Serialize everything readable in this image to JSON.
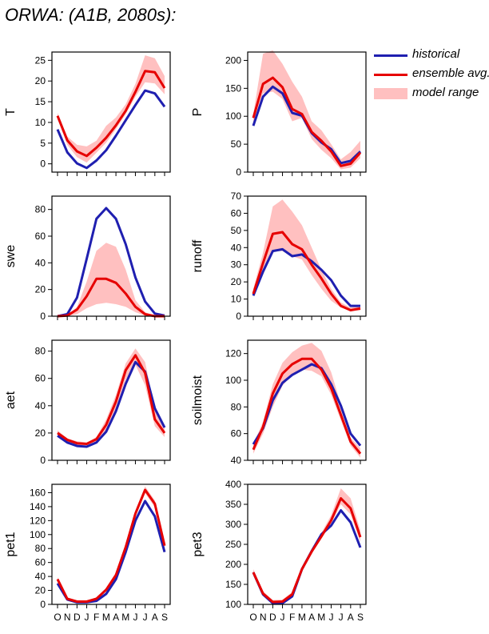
{
  "title": "ORWA:  (A1B, 2080s):",
  "colors": {
    "historical": "#1f1fb0",
    "ensemble": "#e60000",
    "range": "#ffc0c0"
  },
  "legend": {
    "historical": "historical",
    "ensemble": "ensemble avg.",
    "range": "model range"
  },
  "chart_data": [
    {
      "type": "line",
      "ylabel": "T",
      "categories": [
        "O",
        "N",
        "D",
        "J",
        "F",
        "M",
        "A",
        "M",
        "J",
        "J",
        "A",
        "S"
      ],
      "ylim": [
        -2,
        27
      ],
      "yticks": [
        0,
        5,
        10,
        15,
        20,
        25
      ],
      "series": [
        {
          "name": "historical",
          "values": [
            8.3,
            2.8,
            0.1,
            -1.0,
            0.8,
            3.3,
            6.8,
            10.5,
            14.2,
            17.7,
            17.0,
            13.8
          ]
        },
        {
          "name": "ensemble avg.",
          "values": [
            11.6,
            5.7,
            3.0,
            1.9,
            3.9,
            6.3,
            9.3,
            12.8,
            17.4,
            22.4,
            22.1,
            18.3
          ]
        }
      ],
      "range": {
        "low": [
          10.8,
          4.6,
          1.6,
          0.3,
          2.7,
          5.1,
          8.4,
          12.0,
          16.2,
          19.7,
          19.4,
          16.8
        ],
        "high": [
          12.3,
          6.6,
          4.6,
          4.2,
          5.6,
          9.2,
          11.2,
          14.4,
          19.3,
          26.2,
          25.5,
          21.2
        ]
      }
    },
    {
      "type": "line",
      "ylabel": "P",
      "categories": [
        "O",
        "N",
        "D",
        "J",
        "F",
        "M",
        "A",
        "M",
        "J",
        "J",
        "A",
        "S"
      ],
      "ylim": [
        0,
        215
      ],
      "yticks": [
        0,
        50,
        100,
        150,
        200
      ],
      "series": [
        {
          "name": "historical",
          "values": [
            83,
            135,
            153,
            141,
            106,
            101,
            70,
            53,
            41,
            16,
            20,
            37
          ]
        },
        {
          "name": "ensemble avg.",
          "values": [
            97,
            158,
            169,
            152,
            113,
            104,
            72,
            56,
            37,
            11,
            15,
            35
          ]
        }
      ],
      "range": {
        "low": [
          89,
          141,
          144,
          131,
          91,
          97,
          59,
          40,
          25,
          5,
          8,
          25
        ],
        "high": [
          104,
          212,
          218,
          194,
          162,
          135,
          91,
          75,
          50,
          23,
          36,
          56
        ]
      }
    },
    {
      "type": "line",
      "ylabel": "swe",
      "categories": [
        "O",
        "N",
        "D",
        "J",
        "F",
        "M",
        "A",
        "M",
        "J",
        "J",
        "A",
        "S"
      ],
      "ylim": [
        0,
        90
      ],
      "yticks": [
        0,
        20,
        40,
        60,
        80
      ],
      "series": [
        {
          "name": "historical",
          "values": [
            0,
            1.5,
            14,
            43,
            73,
            81,
            73,
            54,
            29,
            11,
            2,
            0.5
          ]
        },
        {
          "name": "ensemble avg.",
          "values": [
            0,
            0.5,
            5,
            15,
            28,
            28,
            25,
            17,
            7,
            1.5,
            0,
            0
          ]
        }
      ],
      "range": {
        "low": [
          0,
          0,
          1.5,
          6,
          9,
          10,
          9,
          7,
          3,
          0.5,
          0,
          0
        ],
        "high": [
          0,
          0.5,
          7,
          26,
          49,
          55,
          52,
          35,
          12,
          3,
          0.5,
          0
        ]
      }
    },
    {
      "type": "line",
      "ylabel": "runoff",
      "categories": [
        "O",
        "N",
        "D",
        "J",
        "F",
        "M",
        "A",
        "M",
        "J",
        "J",
        "A",
        "S"
      ],
      "ylim": [
        0,
        70
      ],
      "yticks": [
        0,
        10,
        20,
        30,
        40,
        50,
        60,
        70
      ],
      "series": [
        {
          "name": "historical",
          "values": [
            12,
            26,
            38,
            39,
            35,
            36,
            32,
            27,
            21,
            12,
            6,
            6
          ]
        },
        {
          "name": "ensemble avg.",
          "values": [
            13,
            31,
            48,
            49,
            42,
            39,
            30,
            22,
            13,
            6,
            3.5,
            4.5
          ]
        }
      ],
      "range": {
        "low": [
          12,
          27,
          38,
          38,
          35,
          33,
          24,
          16,
          9,
          5,
          3,
          3.5
        ],
        "high": [
          16,
          37,
          64,
          68,
          61,
          53,
          40,
          27,
          16,
          8,
          5,
          6
        ]
      }
    },
    {
      "type": "line",
      "ylabel": "aet",
      "categories": [
        "O",
        "N",
        "D",
        "J",
        "F",
        "M",
        "A",
        "M",
        "J",
        "J",
        "A",
        "S"
      ],
      "ylim": [
        0,
        88
      ],
      "yticks": [
        0,
        20,
        40,
        60,
        80
      ],
      "series": [
        {
          "name": "historical",
          "values": [
            18,
            13,
            10.5,
            10,
            13,
            21,
            36,
            56,
            72,
            65,
            38,
            24
          ]
        },
        {
          "name": "ensemble avg.",
          "values": [
            20,
            15,
            12.5,
            12,
            15.5,
            26,
            43,
            66,
            77,
            64,
            30,
            20
          ]
        }
      ],
      "range": {
        "low": [
          18,
          13,
          11,
          11,
          13,
          22,
          37,
          59,
          70,
          55,
          25,
          17
        ],
        "high": [
          22,
          16,
          14,
          13,
          17,
          30,
          48,
          71,
          82,
          72,
          38,
          25
        ]
      }
    },
    {
      "type": "line",
      "ylabel": "soilmoist",
      "categories": [
        "O",
        "N",
        "D",
        "J",
        "F",
        "M",
        "A",
        "M",
        "J",
        "J",
        "A",
        "S"
      ],
      "ylim": [
        40,
        130
      ],
      "yticks": [
        40,
        60,
        80,
        100,
        120
      ],
      "series": [
        {
          "name": "historical",
          "values": [
            52,
            64,
            85,
            98,
            104,
            108,
            112,
            109,
            97,
            81,
            60,
            51
          ]
        },
        {
          "name": "ensemble avg.",
          "values": [
            48,
            65,
            90,
            105,
            112,
            116,
            116,
            108,
            94,
            74,
            54,
            45
          ]
        }
      ],
      "range": {
        "low": [
          45,
          60,
          80,
          96,
          104,
          108,
          107,
          103,
          89,
          70,
          51,
          42
        ],
        "high": [
          52,
          69,
          97,
          113,
          121,
          126,
          128,
          122,
          106,
          82,
          57,
          49
        ]
      }
    },
    {
      "type": "line",
      "ylabel": "pet1",
      "categories": [
        "O",
        "N",
        "D",
        "J",
        "F",
        "M",
        "A",
        "M",
        "J",
        "J",
        "A",
        "S"
      ],
      "ylim": [
        0,
        172
      ],
      "yticks": [
        0,
        20,
        40,
        60,
        80,
        100,
        120,
        140,
        160
      ],
      "series": [
        {
          "name": "historical",
          "values": [
            30,
            7,
            3,
            3,
            5,
            15,
            36,
            75,
            120,
            148,
            126,
            75
          ]
        },
        {
          "name": "ensemble avg.",
          "values": [
            36,
            8,
            4,
            4,
            8,
            21,
            42,
            82,
            130,
            164,
            144,
            84
          ]
        }
      ],
      "range": {
        "low": [
          33,
          7,
          3,
          3,
          7,
          18,
          39,
          79,
          126,
          159,
          139,
          81
        ],
        "high": [
          39,
          9,
          5,
          5,
          10,
          24,
          46,
          86,
          135,
          169,
          149,
          88
        ]
      }
    },
    {
      "type": "line",
      "ylabel": "pet3",
      "categories": [
        "O",
        "N",
        "D",
        "J",
        "F",
        "M",
        "A",
        "M",
        "J",
        "J",
        "A",
        "S"
      ],
      "ylim": [
        100,
        400
      ],
      "yticks": [
        100,
        150,
        200,
        250,
        300,
        350,
        400
      ],
      "series": [
        {
          "name": "historical",
          "values": [
            180,
            125,
            103,
            103,
            120,
            188,
            233,
            275,
            297,
            335,
            305,
            242
          ]
        },
        {
          "name": "ensemble avg.",
          "values": [
            180,
            127,
            106,
            107,
            125,
            188,
            232,
            270,
            310,
            365,
            340,
            268
          ]
        }
      ],
      "range": {
        "low": [
          172,
          121,
          101,
          101,
          118,
          182,
          226,
          264,
          302,
          350,
          325,
          256
        ],
        "high": [
          188,
          133,
          111,
          112,
          131,
          194,
          240,
          279,
          323,
          390,
          365,
          285
        ]
      }
    }
  ]
}
